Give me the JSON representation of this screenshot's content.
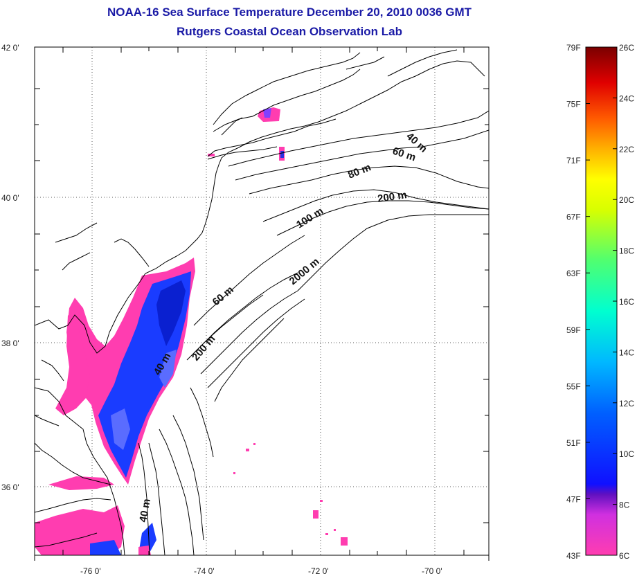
{
  "title": "NOAA-16 Sea Surface Temperature December 20, 2010 0036 GMT",
  "subtitle": "Rutgers Coastal Ocean Observation Lab",
  "lat_labels": [
    "42 0'",
    "40 0'",
    "38 0'",
    "36 0'"
  ],
  "lon_labels": [
    "-76 0'",
    "-74 0'",
    "-72 0'",
    "-70 0'"
  ],
  "contour_labels": [
    "40 m",
    "60 m",
    "80 m",
    "200 m",
    "100 m",
    "2000 m",
    "60 m",
    "40 m",
    "200 m",
    "40 m"
  ],
  "colorbar": {
    "fahrenheit": [
      "79F",
      "75F",
      "71F",
      "67F",
      "63F",
      "59F",
      "55F",
      "51F",
      "47F",
      "43F"
    ],
    "celsius": [
      "26C",
      "24C",
      "22C",
      "20C",
      "18C",
      "16C",
      "14C",
      "12C",
      "10C",
      "8C",
      "6C"
    ],
    "colors": [
      "#7a0000",
      "#d40000",
      "#ff5a00",
      "#ffb000",
      "#ffff00",
      "#88ff40",
      "#00ffd0",
      "#00a8ff",
      "#0030ff",
      "#6010c0",
      "#ff3db0"
    ]
  }
}
